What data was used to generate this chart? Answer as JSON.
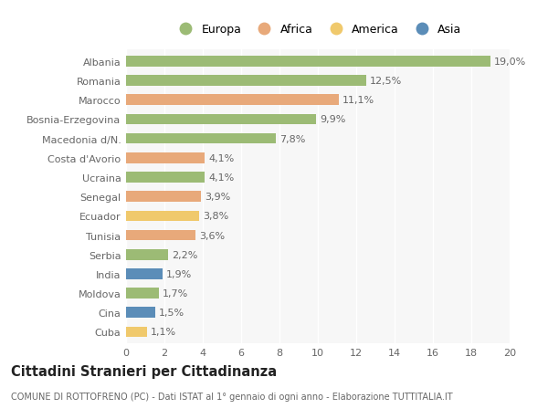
{
  "countries": [
    "Albania",
    "Romania",
    "Marocco",
    "Bosnia-Erzegovina",
    "Macedonia d/N.",
    "Costa d'Avorio",
    "Ucraina",
    "Senegal",
    "Ecuador",
    "Tunisia",
    "Serbia",
    "India",
    "Moldova",
    "Cina",
    "Cuba"
  ],
  "values": [
    19.0,
    12.5,
    11.1,
    9.9,
    7.8,
    4.1,
    4.1,
    3.9,
    3.8,
    3.6,
    2.2,
    1.9,
    1.7,
    1.5,
    1.1
  ],
  "continents": [
    "Europa",
    "Europa",
    "Africa",
    "Europa",
    "Europa",
    "Africa",
    "Europa",
    "Africa",
    "America",
    "Africa",
    "Europa",
    "Asia",
    "Europa",
    "Asia",
    "America"
  ],
  "continent_colors": {
    "Europa": "#9CBB75",
    "Africa": "#E8A97A",
    "America": "#F0C96C",
    "Asia": "#5B8DB8"
  },
  "legend_order": [
    "Europa",
    "Africa",
    "America",
    "Asia"
  ],
  "title": "Cittadini Stranieri per Cittadinanza",
  "subtitle": "COMUNE DI ROTTOFRENO (PC) - Dati ISTAT al 1° gennaio di ogni anno - Elaborazione TUTTITALIA.IT",
  "xlim": [
    0,
    20
  ],
  "xticks": [
    0,
    2,
    4,
    6,
    8,
    10,
    12,
    14,
    16,
    18,
    20
  ],
  "bg_color": "#ffffff",
  "plot_bg_color": "#f7f7f7",
  "bar_height": 0.55,
  "label_fontsize": 8,
  "tick_fontsize": 8,
  "title_fontsize": 10.5,
  "subtitle_fontsize": 7
}
